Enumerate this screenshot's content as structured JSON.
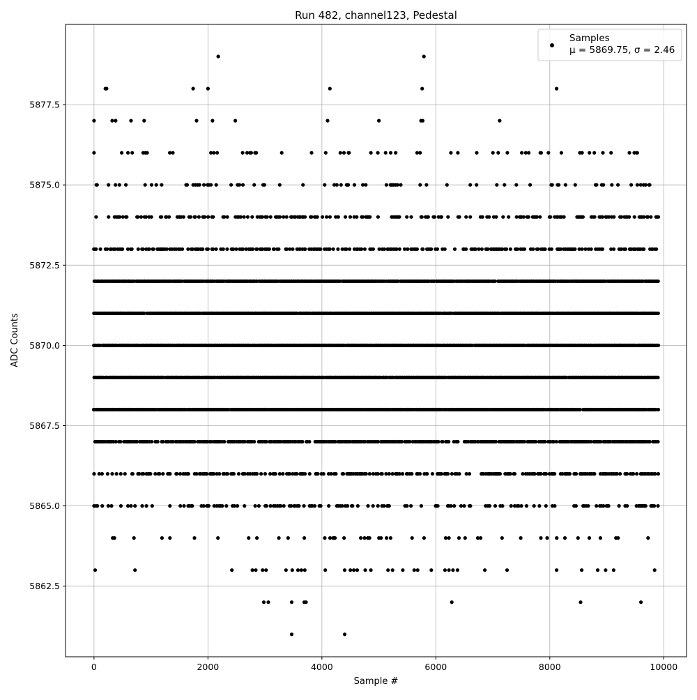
{
  "chart_data": {
    "type": "scatter",
    "title": "Run 482, channel123, Pedestal",
    "xlabel": "Sample #",
    "ylabel": "ADC Counts",
    "xlim": [
      -500,
      10400
    ],
    "ylim": [
      5860.3,
      5880.0
    ],
    "xticks": [
      0,
      2000,
      4000,
      6000,
      8000,
      10000
    ],
    "yticks": [
      5862.5,
      5865.0,
      5867.5,
      5870.0,
      5872.5,
      5875.0,
      5877.5
    ],
    "xtick_labels": [
      "0",
      "2000",
      "4000",
      "6000",
      "8000",
      "10000"
    ],
    "ytick_labels": [
      "5862.5",
      "5865.0",
      "5867.5",
      "5870.0",
      "5872.5",
      "5875.0",
      "5877.5"
    ],
    "grid": true,
    "legend_position": "top-right",
    "marker_color": "#000000",
    "series": [
      {
        "name": "Samples",
        "legend_label_line1": "Samples",
        "legend_label_line2": "μ = 5869.75, σ = 2.46",
        "points": [
          [
            2180,
            5879
          ],
          [
            5790,
            5879
          ],
          [
            200,
            5878
          ],
          [
            220,
            5878
          ],
          [
            1740,
            5878
          ],
          [
            2000,
            5878
          ],
          [
            4140,
            5878
          ],
          [
            5760,
            5878
          ],
          [
            8120,
            5878
          ],
          [
            0,
            5877
          ],
          [
            320,
            5877
          ],
          [
            380,
            5877
          ],
          [
            650,
            5877
          ],
          [
            880,
            5877
          ],
          [
            1800,
            5877
          ],
          [
            2080,
            5877
          ],
          [
            2480,
            5877
          ],
          [
            4100,
            5877
          ],
          [
            5000,
            5877
          ],
          [
            5740,
            5877
          ],
          [
            5770,
            5877
          ],
          [
            7120,
            5877
          ],
          [
            20,
            5863
          ],
          [
            720,
            5863
          ],
          [
            2420,
            5863
          ],
          [
            2780,
            5863
          ],
          [
            2840,
            5863
          ],
          [
            2960,
            5863
          ],
          [
            3020,
            5863
          ],
          [
            3370,
            5863
          ],
          [
            3480,
            5863
          ],
          [
            3580,
            5863
          ],
          [
            3640,
            5863
          ],
          [
            3700,
            5863
          ],
          [
            4060,
            5863
          ],
          [
            4400,
            5863
          ],
          [
            4500,
            5863
          ],
          [
            4560,
            5863
          ],
          [
            4620,
            5863
          ],
          [
            4760,
            5863
          ],
          [
            4860,
            5863
          ],
          [
            5160,
            5863
          ],
          [
            5240,
            5863
          ],
          [
            5420,
            5863
          ],
          [
            5620,
            5863
          ],
          [
            5680,
            5863
          ],
          [
            5920,
            5863
          ],
          [
            6160,
            5863
          ],
          [
            6230,
            5863
          ],
          [
            6300,
            5863
          ],
          [
            6380,
            5863
          ],
          [
            6860,
            5863
          ],
          [
            7250,
            5863
          ],
          [
            8120,
            5863
          ],
          [
            8560,
            5863
          ],
          [
            8840,
            5863
          ],
          [
            8980,
            5863
          ],
          [
            9120,
            5863
          ],
          [
            9840,
            5863
          ],
          [
            2980,
            5862
          ],
          [
            3060,
            5862
          ],
          [
            3470,
            5862
          ],
          [
            3690,
            5862
          ],
          [
            3720,
            5862
          ],
          [
            6280,
            5862
          ],
          [
            8540,
            5862
          ],
          [
            9600,
            5862
          ],
          [
            3470,
            5861
          ],
          [
            4400,
            5861
          ]
        ]
      }
    ]
  }
}
